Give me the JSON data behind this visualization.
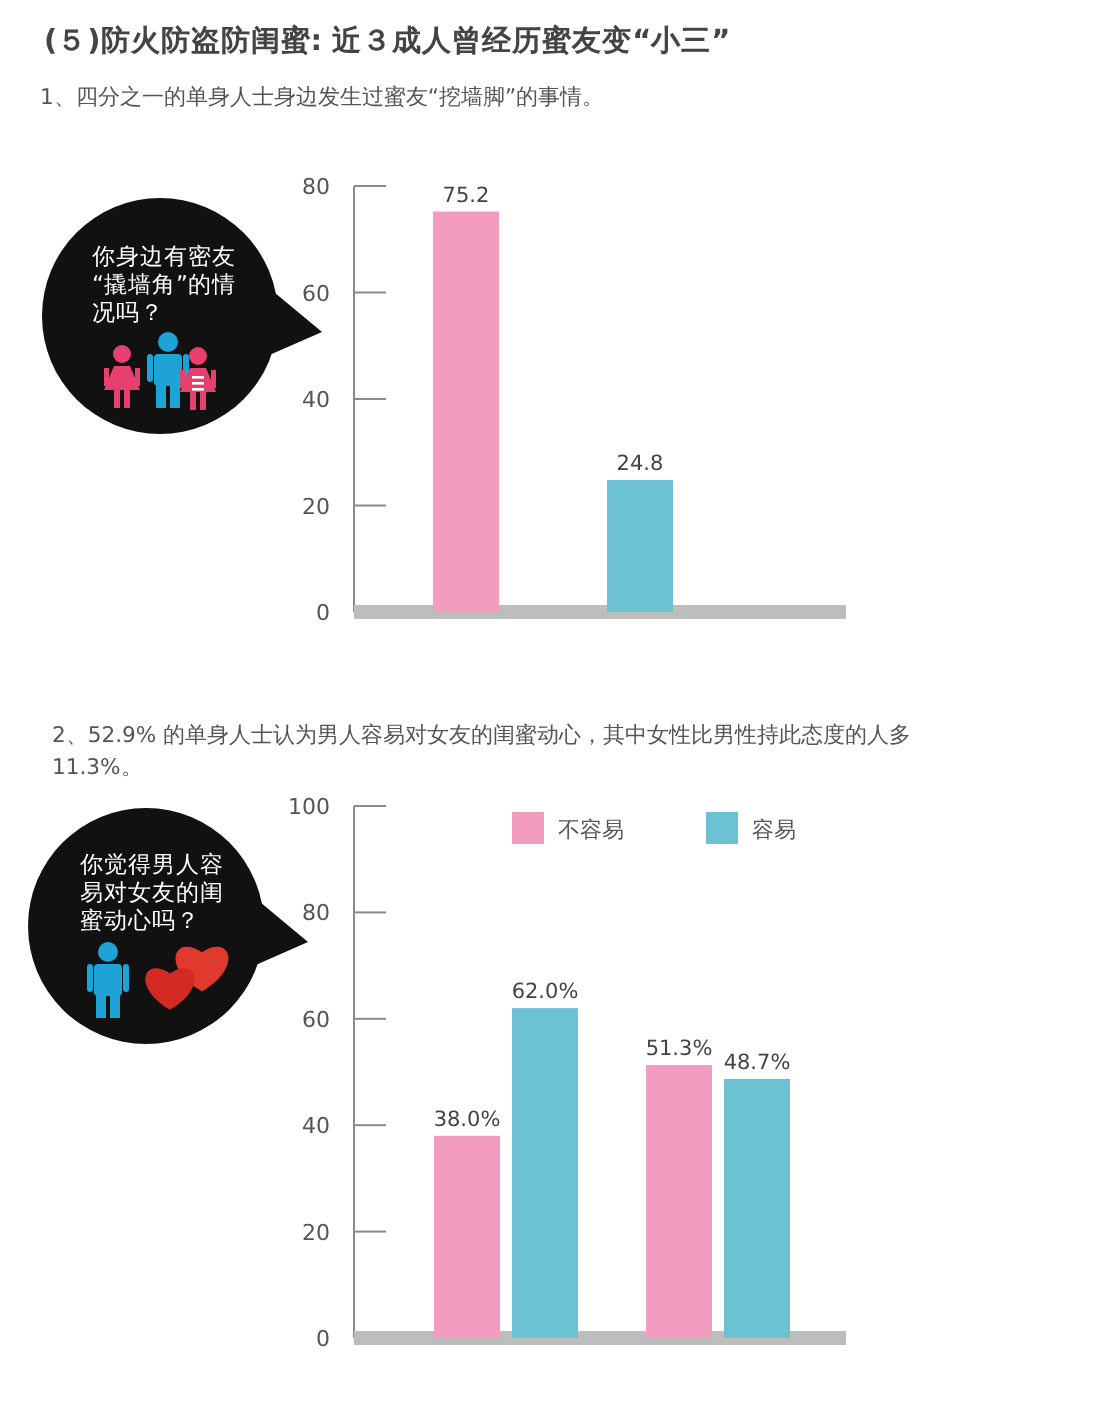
{
  "chart_data": [
    {
      "type": "bar",
      "title": "(５)防火防盗防闺蜜: 近３成人曾经历蜜友变“小三”",
      "subtitle": "1、四分之一的单身人士身边发生过蜜友“挖墙脚”的事情。",
      "annotations": [
        "你身边有密友“撬墙角”的情况吗？"
      ],
      "categories": [
        null,
        null
      ],
      "values": [
        75.2,
        24.8
      ],
      "colors": [
        "#f49bc0",
        "#6cc1d3"
      ],
      "ylim": [
        0,
        80
      ],
      "yticks": [
        0,
        20,
        40,
        60,
        80
      ],
      "data_labels": true
    },
    {
      "type": "bar",
      "title": "2、52.9% 的单身人士认为男人容易对女友的闺蜜动心，其中女性比男性持此态度的人多 11.3%。",
      "annotations": [
        "你觉得男人容易对女友的闺蜜动心吗？"
      ],
      "categories": [
        null,
        null
      ],
      "series": [
        {
          "name": "不容易",
          "color": "#f49bc0",
          "values": [
            38.0,
            51.3
          ],
          "value_labels": [
            "38.0%",
            "51.3%"
          ]
        },
        {
          "name": "容易",
          "color": "#6cc1d3",
          "values": [
            62.0,
            48.7
          ],
          "value_labels": [
            "62.0%",
            "48.7%"
          ]
        }
      ],
      "ylim": [
        0,
        100
      ],
      "yticks": [
        0,
        20,
        40,
        60,
        80,
        100
      ],
      "legend": "top"
    }
  ]
}
